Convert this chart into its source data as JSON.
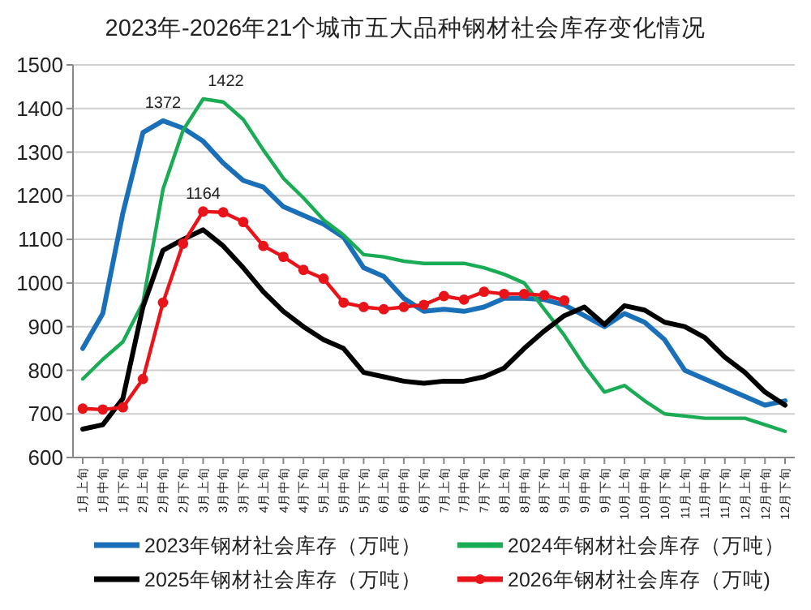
{
  "chart_data": {
    "type": "line",
    "title": "2023年-2026年21个城市五大品种钢材社会库存变化情况",
    "categories": [
      "1月上旬",
      "1月中旬",
      "1月下旬",
      "2月上旬",
      "2月中旬",
      "2月下旬",
      "3月上旬",
      "3月中旬",
      "3月下旬",
      "4月上旬",
      "4月中旬",
      "4月下旬",
      "5月上旬",
      "5月中旬",
      "5月下旬",
      "6月上旬",
      "6月中旬",
      "6月下旬",
      "7月上旬",
      "7月中旬",
      "7月下旬",
      "8月上旬",
      "8月中旬",
      "8月下旬",
      "9月上旬",
      "9月中旬",
      "9月下旬",
      "10月上旬",
      "10月中旬",
      "10月下旬",
      "11月上旬",
      "11月中旬",
      "11月下旬",
      "12月上旬",
      "12月中旬",
      "12月下旬"
    ],
    "series": [
      {
        "name": "2023年钢材社会库存（万吨）",
        "color": "#1a70b8",
        "values": [
          850,
          930,
          1160,
          1345,
          1372,
          1355,
          1325,
          1275,
          1235,
          1220,
          1175,
          1155,
          1135,
          1105,
          1035,
          1015,
          965,
          935,
          940,
          935,
          945,
          965,
          965,
          962,
          950,
          925,
          900,
          930,
          910,
          870,
          800,
          780,
          760,
          740,
          720,
          730
        ]
      },
      {
        "name": "2024年钢材社会库存（万吨）",
        "color": "#1aab55",
        "values": [
          780,
          825,
          865,
          955,
          1215,
          1350,
          1422,
          1415,
          1375,
          1305,
          1240,
          1195,
          1145,
          1110,
          1065,
          1060,
          1050,
          1045,
          1045,
          1045,
          1035,
          1020,
          1000,
          940,
          880,
          810,
          750,
          765,
          730,
          700,
          695,
          690,
          690,
          690,
          675,
          660
        ]
      },
      {
        "name": "2025年钢材社会库存（万吨）",
        "color": "#000000",
        "values": [
          665,
          675,
          735,
          945,
          1075,
          1100,
          1122,
          1085,
          1035,
          980,
          935,
          900,
          870,
          850,
          795,
          785,
          775,
          770,
          775,
          775,
          785,
          805,
          850,
          890,
          925,
          945,
          905,
          948,
          938,
          910,
          900,
          875,
          830,
          795,
          750,
          720
        ]
      },
      {
        "name": "2026年钢材社会库存（万吨)",
        "color": "#e8141a",
        "marker": "circle",
        "values": [
          712,
          710,
          715,
          780,
          955,
          1090,
          1164,
          1162,
          1140,
          1085,
          1060,
          1030,
          1010,
          955,
          945,
          940,
          945,
          950,
          970,
          962,
          980,
          975,
          975,
          972,
          960,
          null,
          null,
          null,
          null,
          null,
          null,
          null,
          null,
          null,
          null,
          null
        ]
      }
    ],
    "annotations": [
      {
        "text": "1372",
        "x": "2月中旬",
        "y": 1372
      },
      {
        "text": "1422",
        "x": "3月上旬",
        "y": 1422
      },
      {
        "text": "1164",
        "x": "3月上旬",
        "y": 1164
      }
    ],
    "ylim": [
      600,
      1500
    ],
    "yticks": [
      600,
      700,
      800,
      900,
      1000,
      1100,
      1200,
      1300,
      1400,
      1500
    ],
    "grid": "y",
    "legend": "bottom"
  }
}
